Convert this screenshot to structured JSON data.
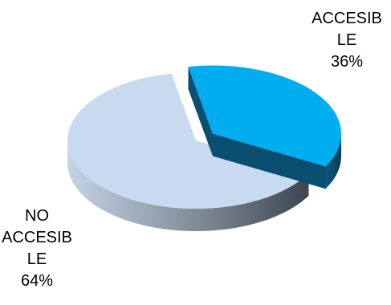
{
  "chart_data": {
    "type": "pie",
    "title": "",
    "slices": [
      {
        "category": "ACCESIBLE",
        "value": 36,
        "label_lines": [
          "ACCESIB",
          "LE",
          "36%"
        ],
        "color_top": "#00adef",
        "color_side": "#0a4f70",
        "exploded": true
      },
      {
        "category": "NO ACCESIBLE",
        "value": 64,
        "label_lines": [
          "NO",
          "ACCESIB",
          "LE",
          "64%"
        ],
        "color_top": "#c7daef",
        "color_side": "#7e8994",
        "exploded": false
      }
    ],
    "legend": "none",
    "style": "3d-exploded"
  }
}
